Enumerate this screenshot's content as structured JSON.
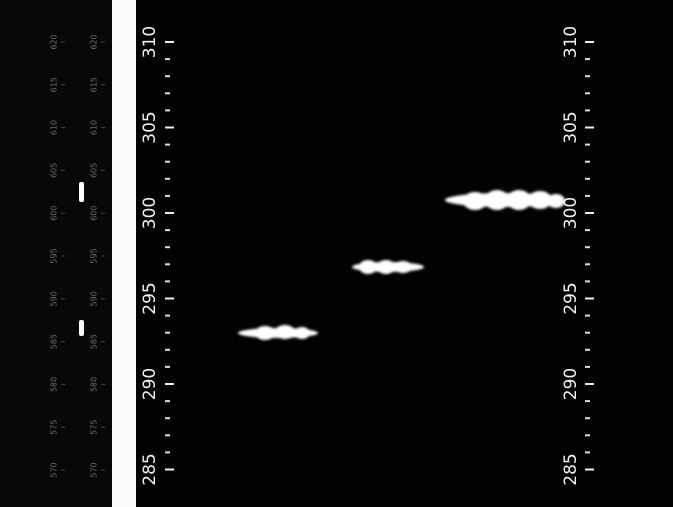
{
  "main_scale": {
    "left_labels": [
      "310",
      "305",
      "300",
      "295",
      "290",
      "285"
    ],
    "right_labels": [
      "310",
      "305",
      "300",
      "295",
      "290",
      "285"
    ]
  },
  "reference_scale": {
    "column_1": [
      "620",
      "615",
      "610",
      "605",
      "600",
      "595",
      "590",
      "585",
      "580",
      "575",
      "570"
    ],
    "column_2": [
      "620",
      "615",
      "610",
      "605",
      "600",
      "595",
      "590",
      "585",
      "580",
      "575",
      "570"
    ]
  }
}
